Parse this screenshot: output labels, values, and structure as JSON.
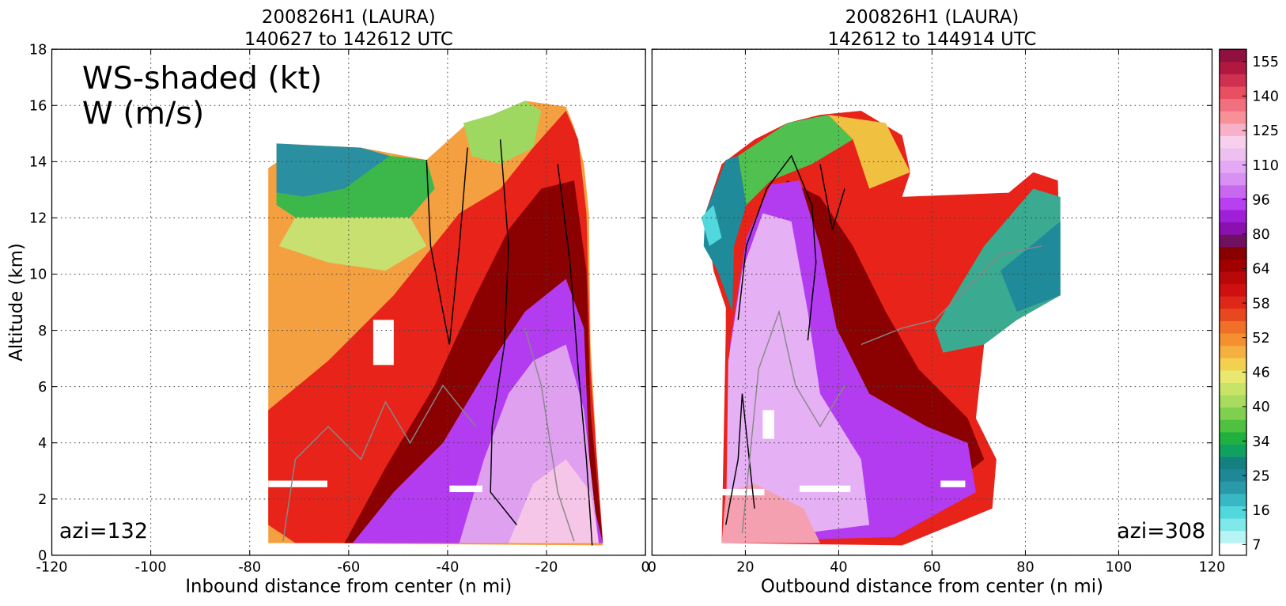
{
  "annotations": {
    "field_label": "WS-shaded (kt)",
    "contour_label": "W (m/s)"
  },
  "chart_data": [
    {
      "type": "contour",
      "title": "200826H1 (LAURA)",
      "subtitle": "140627 to 142612 UTC",
      "x_label": "Inbound distance from center (n mi)",
      "y_label": "Altitude (km)",
      "xlim": [
        -120,
        0
      ],
      "xticks": [
        -120,
        -100,
        -80,
        -60,
        -40,
        -20,
        0
      ],
      "ylim": [
        0,
        18
      ],
      "yticks": [
        0,
        2,
        4,
        6,
        8,
        10,
        12,
        14,
        16,
        18
      ],
      "annotation": "azi=132",
      "grid": true
    },
    {
      "type": "contour",
      "title": "200826H1 (LAURA)",
      "subtitle": "142612 to 144914 UTC",
      "x_label": "Outbound distance from center (n mi)",
      "xlim": [
        0,
        120
      ],
      "xticks": [
        0,
        20,
        40,
        60,
        80,
        100,
        120
      ],
      "ylim": [
        0,
        18
      ],
      "annotation": "azi=308",
      "grid": true
    }
  ],
  "colorbar": {
    "ticks": [
      7,
      16,
      25,
      34,
      40,
      46,
      52,
      58,
      64,
      80,
      96,
      110,
      125,
      140,
      155
    ],
    "colors": [
      "#ffffff",
      "#b8f4f4",
      "#80e8e8",
      "#50d8dc",
      "#38b8c4",
      "#2a9aa8",
      "#1e8896",
      "#158080",
      "#10a060",
      "#20b040",
      "#50c040",
      "#80d050",
      "#a8dc60",
      "#c8e468",
      "#e8e870",
      "#f4d050",
      "#f4b040",
      "#f49030",
      "#f07028",
      "#e84820",
      "#e02818",
      "#d01010",
      "#b80808",
      "#a00000",
      "#880000",
      "#701060",
      "#8a10b0",
      "#a020d8",
      "#b840f0",
      "#c868f0",
      "#d890f4",
      "#e4a8f4",
      "#eec0f0",
      "#f6d0ec",
      "#f8b0c8",
      "#f89098",
      "#f07080",
      "#e85060",
      "#d03050",
      "#b01840",
      "#901040"
    ]
  }
}
